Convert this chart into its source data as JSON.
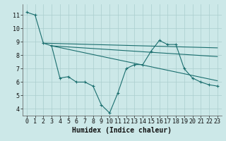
{
  "title": "",
  "xlabel": "Humidex (Indice chaleur)",
  "ylabel": "",
  "xlim": [
    -0.5,
    23.5
  ],
  "ylim": [
    3.5,
    11.8
  ],
  "yticks": [
    4,
    5,
    6,
    7,
    8,
    9,
    10,
    11
  ],
  "xticks": [
    0,
    1,
    2,
    3,
    4,
    5,
    6,
    7,
    8,
    9,
    10,
    11,
    12,
    13,
    14,
    15,
    16,
    17,
    18,
    19,
    20,
    21,
    22,
    23
  ],
  "bg_color": "#cce8e8",
  "grid_color": "#aacece",
  "line_color": "#1a6e6e",
  "lines": [
    {
      "x": [
        0,
        1,
        2,
        3,
        4,
        5,
        6,
        7,
        8,
        9,
        10,
        11,
        12,
        13,
        14,
        15,
        16,
        17,
        18,
        19,
        20,
        21,
        22,
        23
      ],
      "y": [
        11.2,
        11.0,
        8.9,
        8.7,
        6.3,
        6.4,
        6.0,
        6.0,
        5.7,
        4.3,
        3.7,
        5.2,
        7.0,
        7.3,
        7.3,
        8.3,
        9.1,
        8.8,
        8.8,
        7.0,
        6.3,
        6.0,
        5.8,
        5.7
      ],
      "marker": true
    },
    {
      "x": [
        2,
        23
      ],
      "y": [
        8.9,
        8.55
      ],
      "marker": false
    },
    {
      "x": [
        3,
        23
      ],
      "y": [
        8.7,
        7.9
      ],
      "marker": false
    },
    {
      "x": [
        3,
        23
      ],
      "y": [
        8.7,
        6.1
      ],
      "marker": false
    }
  ],
  "fontsize_label": 7,
  "fontsize_tick": 6
}
